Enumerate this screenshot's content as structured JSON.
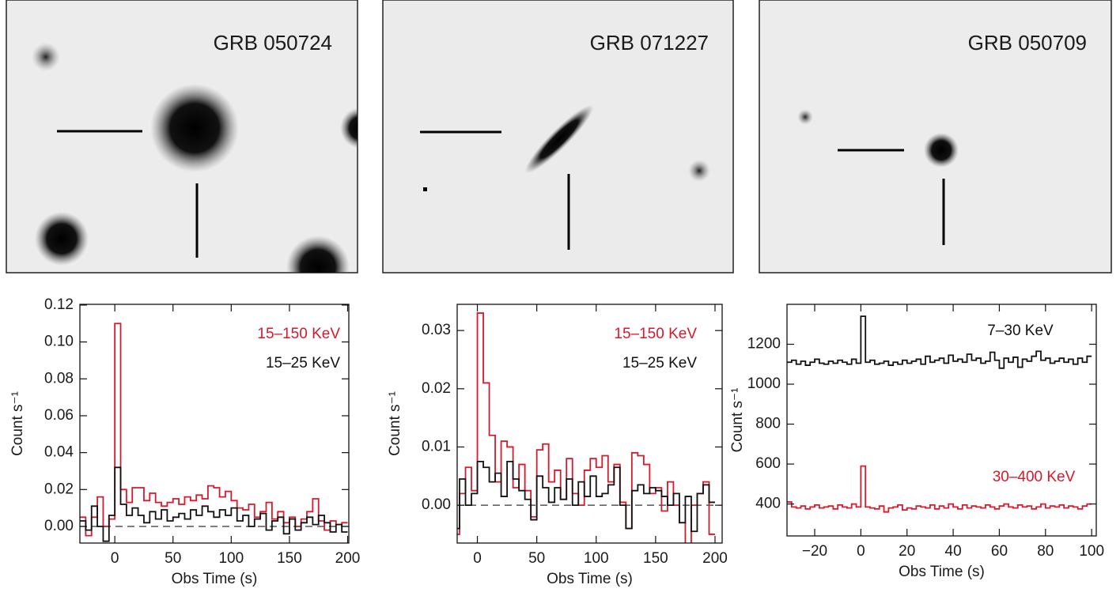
{
  "panels": [
    {
      "label": "GRB 050724"
    },
    {
      "label": "GRB 071227"
    },
    {
      "label": "GRB 050709"
    }
  ],
  "chart_data": [
    {
      "type": "step",
      "x_label": "Obs Time (s)",
      "y_label": "Count s⁻¹",
      "x": [
        -30,
        -25,
        -20,
        -15,
        -10,
        -5,
        0,
        5,
        10,
        15,
        20,
        25,
        30,
        35,
        40,
        45,
        50,
        55,
        60,
        65,
        70,
        75,
        80,
        85,
        90,
        95,
        100,
        105,
        110,
        115,
        120,
        125,
        130,
        135,
        140,
        145,
        150,
        155,
        160,
        165,
        170,
        175,
        180,
        185,
        190,
        195
      ],
      "series": [
        {
          "name": "15–150 KeV",
          "color": "#d7192b",
          "values": [
            0.005,
            -0.005,
            0.005,
            0.016,
            0.0,
            0.004,
            0.11,
            0.02,
            0.013,
            0.021,
            0.021,
            0.014,
            0.018,
            0.013,
            0.011,
            0.013,
            0.015,
            0.012,
            0.016,
            0.014,
            0.017,
            0.015,
            0.022,
            0.021,
            0.016,
            0.019,
            0.014,
            0.01,
            0.009,
            0.012,
            0.005,
            0.008,
            0.013,
            0.004,
            0.008,
            0.002,
            0.005,
            0.0,
            0.004,
            0.008,
            0.015,
            0.003,
            -0.002,
            0.003,
            0.001,
            0.002
          ]
        },
        {
          "name": "15–25 KeV",
          "color": "#111111",
          "values": [
            0.003,
            -0.002,
            0.011,
            0.0,
            -0.008,
            0.006,
            0.032,
            0.012,
            0.006,
            0.01,
            0.006,
            0.002,
            0.008,
            0.004,
            0.009,
            0.003,
            0.005,
            0.007,
            0.004,
            0.009,
            0.006,
            0.011,
            0.008,
            0.005,
            0.009,
            0.006,
            0.01,
            0.003,
            0.006,
            0.0,
            0.004,
            0.007,
            -0.002,
            0.003,
            0.005,
            -0.004,
            0.004,
            -0.002,
            0.002,
            0.005,
            0.001,
            0.006,
            0.002,
            -0.003,
            0.001,
            -0.003
          ]
        }
      ],
      "reference_line": 0,
      "xlim": [
        -30,
        201
      ],
      "xticks": [
        0,
        50,
        100,
        150,
        200
      ],
      "ylim": [
        -0.009,
        0.1204
      ],
      "yticks": [
        {
          "value": 0,
          "label": "0.00"
        },
        0.02,
        0.04,
        0.06,
        0.08,
        {
          "value": 0.1,
          "label": "0.10"
        },
        0.12
      ]
    },
    {
      "type": "step",
      "x_label": "Obs Time (s)",
      "y_label": "Count s⁻¹",
      "x": [
        -20,
        -15,
        -10,
        -5,
        0,
        5,
        10,
        15,
        20,
        25,
        30,
        35,
        40,
        45,
        50,
        55,
        60,
        65,
        70,
        75,
        80,
        85,
        90,
        95,
        100,
        105,
        110,
        115,
        120,
        125,
        130,
        135,
        140,
        145,
        150,
        155,
        160,
        165,
        170,
        175,
        180,
        185,
        190,
        195
      ],
      "series": [
        {
          "name": "15–150 KeV",
          "color": "#d7192b",
          "values": [
            -0.005,
            0.002,
            0.0065,
            0.0025,
            0.033,
            0.021,
            0.012,
            0.004,
            0.011,
            0.01,
            0.003,
            0.007,
            0.0025,
            -0.002,
            0.0095,
            0.0105,
            0.004,
            0.006,
            0.001,
            0.008,
            0.002,
            0.0,
            0.006,
            0.008,
            0.0065,
            0.0085,
            0.004,
            0.007,
            0.0005,
            -0.004,
            0.009,
            0.0085,
            0.007,
            0.002,
            0.003,
            -0.001,
            0.004,
            0.0,
            -0.003,
            -0.0075,
            0.0,
            0.002,
            0.004,
            -0.005
          ]
        },
        {
          "name": "15–25 KeV",
          "color": "#111111",
          "values": [
            -0.004,
            0.0045,
            0.0,
            0.002,
            0.0075,
            0.0065,
            0.004,
            0.0055,
            0.0015,
            0.0075,
            0.0045,
            0.0025,
            0.001,
            -0.0025,
            0.005,
            0.003,
            0.0005,
            0.003,
            0.001,
            0.0045,
            0.0,
            0.004,
            0.0015,
            0.005,
            0.0015,
            0.002,
            0.0035,
            0.0065,
            0.0,
            -0.004,
            0.0025,
            0.0035,
            0.002,
            0.003,
            0.0025,
            0.0015,
            0.0,
            0.002,
            -0.003,
            0.0015,
            -0.0045,
            0.002,
            0.0035,
            0.0005
          ]
        }
      ],
      "reference_line": 0,
      "xlim": [
        -17,
        206
      ],
      "xticks": [
        0,
        50,
        100,
        150,
        200
      ],
      "ylim": [
        -0.0065,
        0.0345
      ],
      "yticks": [
        {
          "value": 0,
          "label": "0.00"
        },
        0.01,
        0.02,
        0.03
      ]
    },
    {
      "type": "step",
      "x_label": "Obs Time (s)",
      "y_label": "Count s⁻¹",
      "x": [
        -32,
        -30,
        -28,
        -26,
        -24,
        -22,
        -20,
        -18,
        -16,
        -14,
        -12,
        -10,
        -8,
        -6,
        -4,
        -2,
        0,
        2,
        4,
        6,
        8,
        10,
        12,
        14,
        16,
        18,
        20,
        22,
        24,
        26,
        28,
        30,
        32,
        34,
        36,
        38,
        40,
        42,
        44,
        46,
        48,
        50,
        52,
        54,
        56,
        58,
        60,
        62,
        64,
        66,
        68,
        70,
        72,
        74,
        76,
        78,
        80,
        82,
        84,
        86,
        88,
        90,
        92,
        94,
        96,
        98
      ],
      "series": [
        {
          "name": "7–30 KeV",
          "color": "#111111",
          "values": [
            1110,
            1120,
            1100,
            1115,
            1095,
            1110,
            1125,
            1105,
            1100,
            1115,
            1105,
            1120,
            1110,
            1100,
            1125,
            1105,
            1340,
            1110,
            1120,
            1100,
            1105,
            1115,
            1095,
            1110,
            1100,
            1120,
            1105,
            1115,
            1125,
            1100,
            1140,
            1110,
            1120,
            1130,
            1105,
            1145,
            1115,
            1125,
            1110,
            1150,
            1120,
            1130,
            1105,
            1115,
            1160,
            1120,
            1080,
            1130,
            1110,
            1135,
            1085,
            1125,
            1115,
            1140,
            1165,
            1120,
            1130,
            1105,
            1115,
            1130,
            1110,
            1125,
            1100,
            1130,
            1110,
            1140
          ]
        },
        {
          "name": "30–400 KeV",
          "color": "#d7192b",
          "values": [
            410,
            385,
            380,
            390,
            375,
            385,
            395,
            380,
            385,
            390,
            375,
            395,
            385,
            380,
            400,
            385,
            590,
            385,
            380,
            375,
            390,
            360,
            380,
            385,
            395,
            370,
            380,
            375,
            390,
            385,
            380,
            395,
            375,
            390,
            380,
            400,
            385,
            375,
            395,
            380,
            390,
            385,
            380,
            395,
            385,
            375,
            390,
            400,
            385,
            380,
            395,
            385,
            390,
            375,
            385,
            400,
            380,
            390,
            385,
            395,
            380,
            390,
            385,
            375,
            390,
            400
          ]
        }
      ],
      "xlim": [
        -32,
        102
      ],
      "xticks": [
        {
          "value": -20,
          "label": "−20"
        },
        0,
        20,
        40,
        60,
        80,
        100
      ],
      "ylim": [
        240,
        1400
      ],
      "yticks": [
        400,
        600,
        800,
        1000,
        1200
      ]
    }
  ]
}
